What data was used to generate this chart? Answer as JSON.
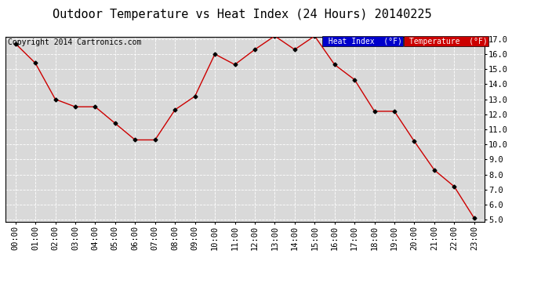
{
  "title": "Outdoor Temperature vs Heat Index (24 Hours) 20140225",
  "copyright": "Copyright 2014 Cartronics.com",
  "hours": [
    "00:00",
    "01:00",
    "02:00",
    "03:00",
    "04:00",
    "05:00",
    "06:00",
    "07:00",
    "08:00",
    "09:00",
    "10:00",
    "11:00",
    "12:00",
    "13:00",
    "14:00",
    "15:00",
    "16:00",
    "17:00",
    "18:00",
    "19:00",
    "20:00",
    "21:00",
    "22:00",
    "23:00"
  ],
  "temperature": [
    16.7,
    15.4,
    13.0,
    12.5,
    12.5,
    11.4,
    10.3,
    10.3,
    12.3,
    13.2,
    16.0,
    15.3,
    16.3,
    17.2,
    16.3,
    17.2,
    15.3,
    14.3,
    12.2,
    12.2,
    10.2,
    8.3,
    7.2,
    5.1
  ],
  "heat_index": [
    16.7,
    15.4,
    13.0,
    12.5,
    12.5,
    11.4,
    10.3,
    10.3,
    12.3,
    13.2,
    16.0,
    15.3,
    16.3,
    17.2,
    16.3,
    17.2,
    15.3,
    14.3,
    12.2,
    12.2,
    10.2,
    8.3,
    7.2,
    5.1
  ],
  "ylim_min": 5.0,
  "ylim_max": 17.0,
  "ytick_step": 1.0,
  "line_color": "#cc0000",
  "marker_color": "#000000",
  "bg_color": "#d9d9d9",
  "grid_color": "#ffffff",
  "title_fontsize": 11,
  "copyright_fontsize": 7,
  "legend_heat_index_bg": "#0000cc",
  "legend_temperature_bg": "#cc0000",
  "legend_text_color": "#ffffff",
  "tick_fontsize": 7.5,
  "legend_fontsize": 7
}
